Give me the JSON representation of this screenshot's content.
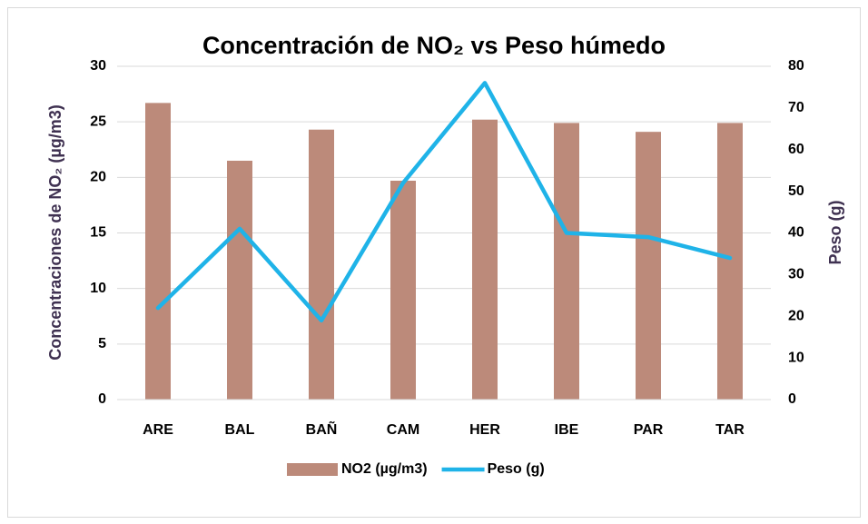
{
  "chart_data": {
    "type": "bar",
    "title": "Concentración de NO₂ vs Peso húmedo",
    "ylabel": "Concentraciones de NO₂  (µg/m3)",
    "y2label": "Peso (g)",
    "categories": [
      "ARE",
      "BAL",
      "BAÑ",
      "CAM",
      "HER",
      "IBE",
      "PAR",
      "TAR"
    ],
    "series": [
      {
        "name": "NO2 (µg/m3)",
        "type": "bar",
        "color": "#bc8a7a",
        "axis": "y",
        "values": [
          26.7,
          21.5,
          24.3,
          19.7,
          25.2,
          24.9,
          24.1,
          24.9
        ]
      },
      {
        "name": "Peso (g)",
        "type": "line",
        "color": "#1fb3e8",
        "axis": "y2",
        "values": [
          22,
          41,
          19,
          52,
          76,
          40,
          39,
          34
        ]
      }
    ],
    "ylim": [
      0,
      30
    ],
    "yticks": [
      0,
      5,
      10,
      15,
      20,
      25,
      30
    ],
    "y2lim": [
      0,
      80
    ],
    "y2ticks": [
      0,
      10,
      20,
      30,
      40,
      50,
      60,
      70,
      80
    ],
    "grid": true,
    "legend": "bottom"
  }
}
